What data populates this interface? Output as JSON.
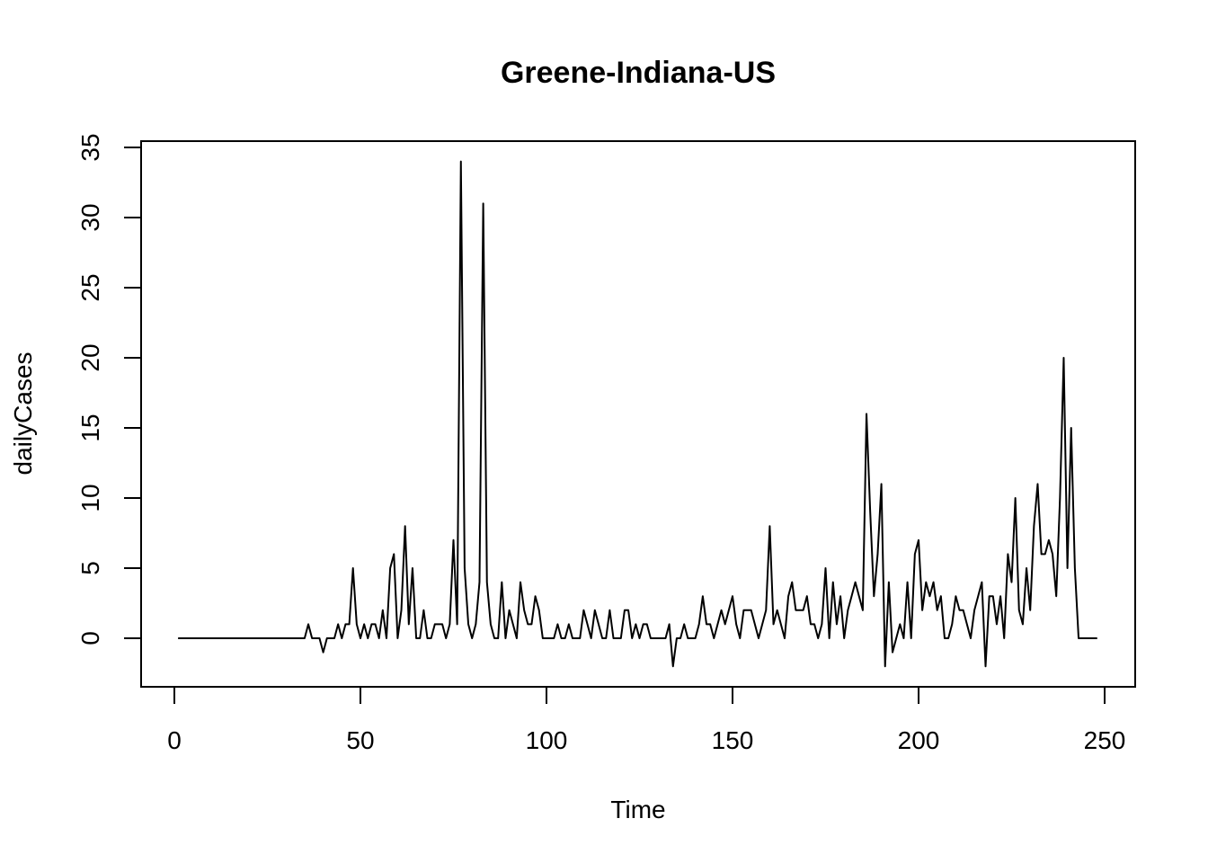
{
  "chart_data": {
    "type": "line",
    "title": "Greene-Indiana-US",
    "xlabel": "Time",
    "ylabel": "dailyCases",
    "xlim": [
      0,
      250
    ],
    "ylim": [
      -3,
      35
    ],
    "xticks": [
      0,
      50,
      100,
      150,
      200,
      250
    ],
    "yticks": [
      0,
      5,
      10,
      15,
      20,
      25,
      30,
      35
    ],
    "grid": false,
    "legend": "none",
    "line_color": "#000000",
    "x": [
      1,
      2,
      3,
      4,
      5,
      6,
      7,
      8,
      9,
      10,
      11,
      12,
      13,
      14,
      15,
      16,
      17,
      18,
      19,
      20,
      21,
      22,
      23,
      24,
      25,
      26,
      27,
      28,
      29,
      30,
      31,
      32,
      33,
      34,
      35,
      36,
      37,
      38,
      39,
      40,
      41,
      42,
      43,
      44,
      45,
      46,
      47,
      48,
      49,
      50,
      51,
      52,
      53,
      54,
      55,
      56,
      57,
      58,
      59,
      60,
      61,
      62,
      63,
      64,
      65,
      66,
      67,
      68,
      69,
      70,
      71,
      72,
      73,
      74,
      75,
      76,
      77,
      78,
      79,
      80,
      81,
      82,
      83,
      84,
      85,
      86,
      87,
      88,
      89,
      90,
      91,
      92,
      93,
      94,
      95,
      96,
      97,
      98,
      99,
      100,
      101,
      102,
      103,
      104,
      105,
      106,
      107,
      108,
      109,
      110,
      111,
      112,
      113,
      114,
      115,
      116,
      117,
      118,
      119,
      120,
      121,
      122,
      123,
      124,
      125,
      126,
      127,
      128,
      129,
      130,
      131,
      132,
      133,
      134,
      135,
      136,
      137,
      138,
      139,
      140,
      141,
      142,
      143,
      144,
      145,
      146,
      147,
      148,
      149,
      150,
      151,
      152,
      153,
      154,
      155,
      156,
      157,
      158,
      159,
      160,
      161,
      162,
      163,
      164,
      165,
      166,
      167,
      168,
      169,
      170,
      171,
      172,
      173,
      174,
      175,
      176,
      177,
      178,
      179,
      180,
      181,
      182,
      183,
      184,
      185,
      186,
      187,
      188,
      189,
      190,
      191,
      192,
      193,
      194,
      195,
      196,
      197,
      198,
      199,
      200,
      201,
      202,
      203,
      204,
      205,
      206,
      207,
      208,
      209,
      210,
      211,
      212,
      213,
      214,
      215,
      216,
      217,
      218,
      219,
      220,
      221,
      222,
      223,
      224,
      225,
      226,
      227,
      228,
      229,
      230,
      231,
      232,
      233,
      234,
      235,
      236,
      237,
      238,
      239,
      240,
      241,
      242,
      243,
      244,
      245,
      246,
      247,
      248
    ],
    "y": [
      0,
      0,
      0,
      0,
      0,
      0,
      0,
      0,
      0,
      0,
      0,
      0,
      0,
      0,
      0,
      0,
      0,
      0,
      0,
      0,
      0,
      0,
      0,
      0,
      0,
      0,
      0,
      0,
      0,
      0,
      0,
      0,
      0,
      0,
      0,
      1,
      0,
      0,
      0,
      -1,
      0,
      0,
      0,
      1,
      0,
      1,
      1,
      5,
      1,
      0,
      1,
      0,
      1,
      1,
      0,
      2,
      0,
      5,
      6,
      0,
      2,
      8,
      1,
      5,
      0,
      0,
      2,
      0,
      0,
      1,
      1,
      1,
      0,
      1,
      7,
      1,
      34,
      5,
      1,
      0,
      1,
      4,
      31,
      4,
      1,
      0,
      0,
      4,
      0,
      2,
      1,
      0,
      4,
      2,
      1,
      1,
      3,
      2,
      0,
      0,
      0,
      0,
      1,
      0,
      0,
      1,
      0,
      0,
      0,
      2,
      1,
      0,
      2,
      1,
      0,
      0,
      2,
      0,
      0,
      0,
      2,
      2,
      0,
      1,
      0,
      1,
      1,
      0,
      0,
      0,
      0,
      0,
      1,
      -2,
      0,
      0,
      1,
      0,
      0,
      0,
      1,
      3,
      1,
      1,
      0,
      1,
      2,
      1,
      2,
      3,
      1,
      0,
      2,
      2,
      2,
      1,
      0,
      1,
      2,
      8,
      1,
      2,
      1,
      0,
      3,
      4,
      2,
      2,
      2,
      3,
      1,
      1,
      0,
      1,
      5,
      0,
      4,
      1,
      3,
      0,
      2,
      3,
      4,
      3,
      2,
      16,
      9,
      3,
      6,
      11,
      -2,
      4,
      -1,
      0,
      1,
      0,
      4,
      0,
      6,
      7,
      2,
      4,
      3,
      4,
      2,
      3,
      0,
      0,
      1,
      3,
      2,
      2,
      1,
      0,
      2,
      3,
      4,
      -2,
      3,
      3,
      1,
      3,
      0,
      6,
      4,
      10,
      2,
      1,
      5,
      2,
      8,
      11,
      6,
      6,
      7,
      6,
      3,
      10,
      20,
      5,
      15,
      5,
      0,
      0,
      0,
      0,
      0,
      0
    ]
  }
}
